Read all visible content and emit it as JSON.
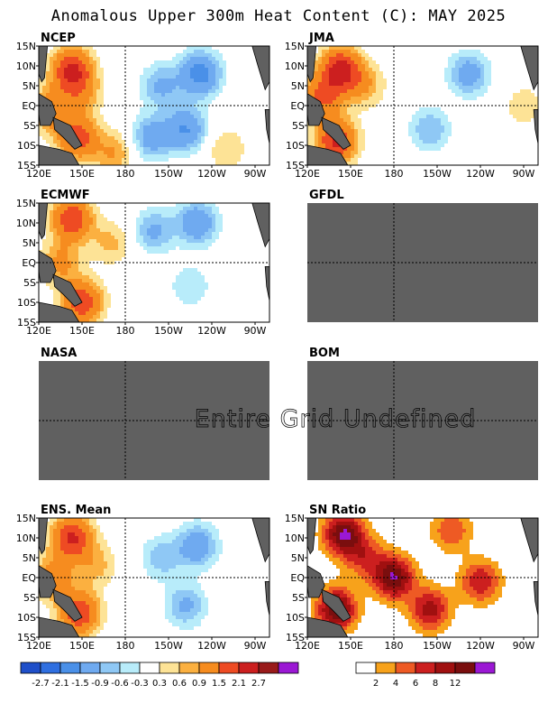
{
  "title": "Anomalous Upper 300m Heat Content (C): MAY 2025",
  "undefined_message": "Entire Grid Undefined",
  "colors": {
    "land": "#606060",
    "undefined_panel": "#606060",
    "anomaly_scale": [
      "#1f4fc9",
      "#2f6fe0",
      "#4a90e8",
      "#6faaf0",
      "#8fc8f5",
      "#b8ecfa",
      "#ffffff",
      "#fde396",
      "#fbb040",
      "#f68c1f",
      "#ee4b23",
      "#cc1f1f",
      "#991a1a",
      "#9b18d4"
    ],
    "snr_scale": [
      "#ffffff",
      "#f7a21b",
      "#ee5a24",
      "#cc1f1f",
      "#a01010",
      "#7a0e0e",
      "#9b18d4"
    ]
  },
  "chart_data": [
    {
      "type": "heatmap",
      "panel": "NCEP",
      "title": "NCEP",
      "defined": true,
      "x_ticks": [
        "120E",
        "150E",
        "180",
        "150W",
        "120W",
        "90W"
      ],
      "y_ticks": [
        "15N",
        "10N",
        "5N",
        "EQ",
        "5S",
        "10S",
        "15S"
      ],
      "xlim": [
        120,
        280
      ],
      "ylim": [
        -15,
        15
      ],
      "features": [
        {
          "lon": 143,
          "lat": 9,
          "value": 2.2
        },
        {
          "lon": 147,
          "lat": -8,
          "value": 1.8
        },
        {
          "lon": 128,
          "lat": -1,
          "value": 1.3
        },
        {
          "lon": 150,
          "lat": 3,
          "value": 0.8
        },
        {
          "lon": 172,
          "lat": -12,
          "value": 0.9
        },
        {
          "lon": 232,
          "lat": 8,
          "value": -1.8
        },
        {
          "lon": 205,
          "lat": 5,
          "value": -1.0
        },
        {
          "lon": 222,
          "lat": -6,
          "value": -1.5
        },
        {
          "lon": 198,
          "lat": -8,
          "value": -1.2
        },
        {
          "lon": 250,
          "lat": -11,
          "value": 0.6
        }
      ]
    },
    {
      "type": "heatmap",
      "panel": "JMA",
      "title": "JMA",
      "defined": true,
      "x_ticks": [
        "120E",
        "150E",
        "180",
        "150W",
        "120W",
        "90W"
      ],
      "y_ticks": [
        "15N",
        "10N",
        "5N",
        "EQ",
        "5S",
        "10S",
        "15S"
      ],
      "xlim": [
        120,
        280
      ],
      "ylim": [
        -15,
        15
      ],
      "features": [
        {
          "lon": 143,
          "lat": 9,
          "value": 2.4
        },
        {
          "lon": 140,
          "lat": -9,
          "value": 2.2
        },
        {
          "lon": 130,
          "lat": 2,
          "value": 1.5
        },
        {
          "lon": 160,
          "lat": 5,
          "value": 0.8
        },
        {
          "lon": 232,
          "lat": 8,
          "value": -1.2
        },
        {
          "lon": 205,
          "lat": -6,
          "value": -0.9
        },
        {
          "lon": 270,
          "lat": 0,
          "value": 0.5
        }
      ]
    },
    {
      "type": "heatmap",
      "panel": "ECMWF",
      "title": "ECMWF",
      "defined": true,
      "x_ticks": [
        "120E",
        "150E",
        "180",
        "150W",
        "120W",
        "90W"
      ],
      "y_ticks": [
        "15N",
        "10N",
        "5N",
        "EQ",
        "5S",
        "10S",
        "15S"
      ],
      "xlim": [
        120,
        280
      ],
      "ylim": [
        -15,
        15
      ],
      "features": [
        {
          "lon": 143,
          "lat": 11,
          "value": 2.0
        },
        {
          "lon": 150,
          "lat": -10,
          "value": 2.0
        },
        {
          "lon": 135,
          "lat": 0,
          "value": 1.0
        },
        {
          "lon": 170,
          "lat": 5,
          "value": 0.7
        },
        {
          "lon": 230,
          "lat": 10,
          "value": -1.4
        },
        {
          "lon": 200,
          "lat": 8,
          "value": -1.0
        },
        {
          "lon": 225,
          "lat": -6,
          "value": -0.6
        }
      ]
    },
    {
      "type": "heatmap",
      "panel": "GFDL",
      "title": "GFDL",
      "defined": false
    },
    {
      "type": "heatmap",
      "panel": "NASA",
      "title": "NASA",
      "defined": false
    },
    {
      "type": "heatmap",
      "panel": "BOM",
      "title": "BOM",
      "defined": false
    },
    {
      "type": "heatmap",
      "panel": "ENS. Mean",
      "title": "ENS. Mean",
      "defined": true,
      "x_ticks": [
        "120E",
        "150E",
        "180",
        "150W",
        "120W",
        "90W"
      ],
      "y_ticks": [
        "15N",
        "10N",
        "5N",
        "EQ",
        "5S",
        "10S",
        "15S"
      ],
      "xlim": [
        120,
        280
      ],
      "ylim": [
        -15,
        15
      ],
      "features": [
        {
          "lon": 143,
          "lat": 10,
          "value": 2.2
        },
        {
          "lon": 148,
          "lat": -9,
          "value": 2.0
        },
        {
          "lon": 130,
          "lat": 0,
          "value": 1.2
        },
        {
          "lon": 160,
          "lat": 3,
          "value": 0.7
        },
        {
          "lon": 230,
          "lat": 8,
          "value": -1.3
        },
        {
          "lon": 205,
          "lat": 5,
          "value": -0.8
        },
        {
          "lon": 222,
          "lat": -7,
          "value": -1.0
        }
      ]
    },
    {
      "type": "heatmap",
      "panel": "SN Ratio",
      "title": "SN Ratio",
      "defined": true,
      "x_ticks": [
        "120E",
        "150E",
        "180",
        "150W",
        "120W",
        "90W"
      ],
      "y_ticks": [
        "15N",
        "10N",
        "5N",
        "EQ",
        "5S",
        "10S",
        "15S"
      ],
      "xlim": [
        120,
        280
      ],
      "ylim": [
        -15,
        15
      ],
      "features": [
        {
          "lon": 145,
          "lat": 11,
          "value": 12
        },
        {
          "lon": 140,
          "lat": -8,
          "value": 12
        },
        {
          "lon": 180,
          "lat": 0,
          "value": 12
        },
        {
          "lon": 205,
          "lat": -8,
          "value": 9
        },
        {
          "lon": 240,
          "lat": -1,
          "value": 8
        },
        {
          "lon": 160,
          "lat": 5,
          "value": 6
        },
        {
          "lon": 220,
          "lat": 12,
          "value": 6
        }
      ]
    }
  ],
  "colorbars": [
    {
      "name": "anomaly",
      "labels": [
        "-2.7",
        "-2.1",
        "-1.5",
        "-0.9",
        "-0.6",
        "-0.3",
        "0.3",
        "0.6",
        "0.9",
        "1.5",
        "2.1",
        "2.7"
      ]
    },
    {
      "name": "snr",
      "labels": [
        "2",
        "4",
        "6",
        "8",
        "12"
      ]
    }
  ]
}
